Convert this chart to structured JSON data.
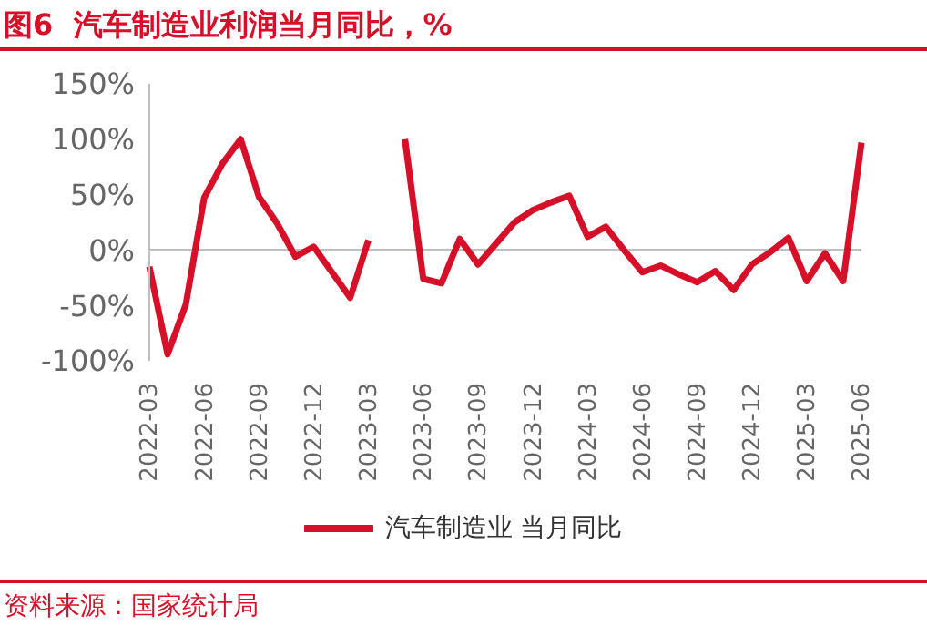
{
  "chart_data": {
    "type": "line",
    "title": "图6  汽车制造业利润当月同比，%",
    "categories": [
      "2022-03",
      null,
      null,
      "2022-06",
      null,
      null,
      "2022-09",
      null,
      null,
      "2022-12",
      null,
      null,
      "2023-03",
      null,
      null,
      "2023-06",
      null,
      null,
      "2023-09",
      null,
      null,
      "2023-12",
      null,
      null,
      "2024-03",
      null,
      null,
      "2024-06",
      null,
      null,
      "2024-09",
      null,
      null,
      "2024-12",
      null,
      null,
      "2025-03",
      null,
      null,
      "2025-06"
    ],
    "series": [
      {
        "name": "汽车制造业 当月同比",
        "color": "#d7102a",
        "values": [
          -15,
          -94,
          -49,
          47,
          78,
          100,
          48,
          24,
          -6,
          3,
          -20,
          -43,
          9,
          null,
          100,
          -26,
          -30,
          10,
          -13,
          6,
          25,
          36,
          43,
          49,
          12,
          21,
          0,
          -20,
          -14,
          -22,
          -29,
          -19,
          -36,
          -13,
          -2,
          11,
          -28,
          -3,
          -28,
          97
        ]
      }
    ],
    "ylim": [
      -100,
      150
    ],
    "yticks": [
      {
        "value": -100,
        "label": "-100%"
      },
      {
        "value": -50,
        "label": "-50%"
      },
      {
        "value": 0,
        "label": "0%"
      },
      {
        "value": 50,
        "label": "50%"
      },
      {
        "value": 100,
        "label": "100%"
      },
      {
        "value": 150,
        "label": "150%"
      }
    ],
    "ref_lines": [
      {
        "axis": "y",
        "value": 0,
        "color": "#bfbfbf"
      }
    ],
    "grid": false,
    "legend": "bottom",
    "marker": "none",
    "line_style": "solid",
    "annotations": [
      "资料来源：国家统计局"
    ]
  }
}
